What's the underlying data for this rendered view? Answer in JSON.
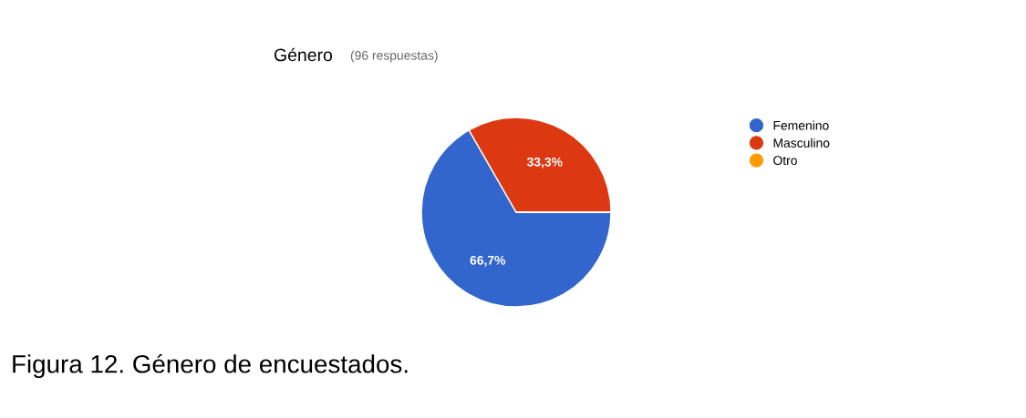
{
  "chart_data": {
    "type": "pie",
    "title": "Género",
    "subtitle": "(96 respuestas)",
    "categories": [
      "Femenino",
      "Masculino",
      "Otro"
    ],
    "values": [
      66.7,
      33.3,
      0
    ],
    "colors": [
      "#3366cc",
      "#dc3912",
      "#ff9900"
    ],
    "value_labels": [
      "66,7%",
      "33,3%",
      null
    ],
    "legend": "right",
    "annotations": [
      "Figura 12. Género de encuestados."
    ]
  }
}
